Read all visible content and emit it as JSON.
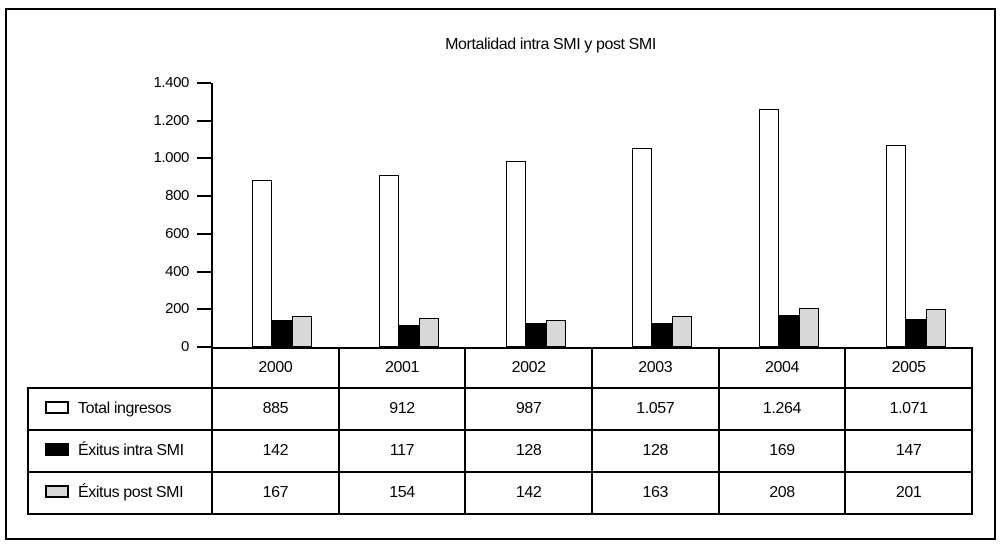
{
  "title": "Mortalidad intra SMI y post SMI",
  "colors": {
    "background": "#ffffff",
    "border": "#000000",
    "bar_white": "#ffffff",
    "bar_black": "#000000",
    "bar_gray": "#d8d8d8"
  },
  "chart_data": {
    "type": "bar",
    "title": "Mortalidad intra SMI y post SMI",
    "categories": [
      "2000",
      "2001",
      "2002",
      "2003",
      "2004",
      "2005"
    ],
    "series": [
      {
        "name": "Total ingresos",
        "color": "#ffffff",
        "values": [
          885,
          912,
          987,
          1057,
          1264,
          1071
        ]
      },
      {
        "name": "Éxitus intra SMI",
        "color": "#000000",
        "values": [
          142,
          117,
          128,
          128,
          169,
          147
        ]
      },
      {
        "name": "Éxitus post SMI",
        "color": "#d8d8d8",
        "values": [
          167,
          154,
          142,
          163,
          208,
          201
        ]
      }
    ],
    "xlabel": "",
    "ylabel": "",
    "ylim": [
      0,
      1400
    ],
    "grid": false,
    "legend_position": "table-below",
    "y_ticks": [
      {
        "value": 0,
        "label": "0"
      },
      {
        "value": 200,
        "label": "200"
      },
      {
        "value": 400,
        "label": "400"
      },
      {
        "value": 600,
        "label": "600"
      },
      {
        "value": 800,
        "label": "800"
      },
      {
        "value": 1000,
        "label": "1.000"
      },
      {
        "value": 1200,
        "label": "1.200"
      },
      {
        "value": 1400,
        "label": "1.400"
      }
    ]
  },
  "table": {
    "year_headers": [
      "2000",
      "2001",
      "2002",
      "2003",
      "2004",
      "2005"
    ],
    "rows": [
      {
        "label": "Total ingresos",
        "swatch": "#ffffff",
        "values": [
          "885",
          "912",
          "987",
          "1.057",
          "1.264",
          "1.071"
        ]
      },
      {
        "label": "Éxitus intra SMI",
        "swatch": "#000000",
        "values": [
          "142",
          "117",
          "128",
          "128",
          "169",
          "147"
        ]
      },
      {
        "label": "Éxitus post SMI",
        "swatch": "#d8d8d8",
        "values": [
          "167",
          "154",
          "142",
          "163",
          "208",
          "201"
        ]
      }
    ]
  }
}
